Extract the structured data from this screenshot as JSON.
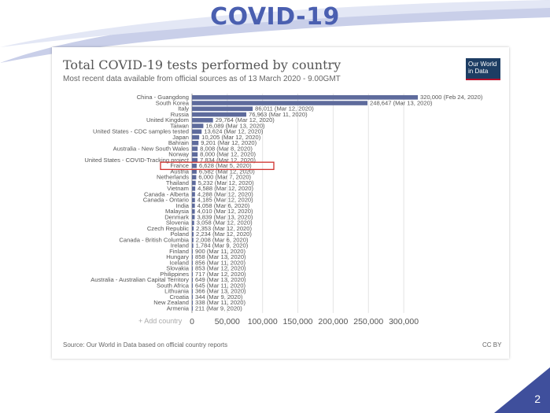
{
  "slide": {
    "title": "COVID-19",
    "page_number": "2",
    "colors": {
      "title": "#4a5fb0",
      "corner": "#3f4f9c",
      "bar": "#5e6b9c",
      "highlight": "#d0312d"
    }
  },
  "header": {
    "title": "Total COVID-19 tests performed by country",
    "subtitle": "Most recent data available from official sources as of 13 March 2020 - 9.00GMT",
    "logo_line1": "Our World",
    "logo_line2": "in Data"
  },
  "footer": {
    "source": "Source: Our World in Data based on official country reports",
    "license": "CC BY",
    "add_country": "+ Add country"
  },
  "chart_data": {
    "type": "bar",
    "orientation": "horizontal",
    "title": "Total COVID-19 tests performed by country",
    "highlighted_category": "France",
    "xlim": [
      0,
      330000
    ],
    "xticks": [
      0,
      50000,
      100000,
      150000,
      200000,
      250000,
      300000
    ],
    "xtick_labels": [
      "0",
      "50,000",
      "100,000",
      "150,000",
      "200,000",
      "250,000",
      "300,000"
    ],
    "categories": [
      "China - Guangdong",
      "South Korea",
      "Italy",
      "Russia",
      "United Kingdom",
      "Taiwan",
      "United States - CDC samples tested",
      "Japan",
      "Bahrain",
      "Australia - New South Wales",
      "Norway",
      "United States - COVID-Tracking project",
      "France",
      "Austria",
      "Netherlands",
      "Thailand",
      "Vietnam",
      "Canada - Alberta",
      "Canada - Ontario",
      "India",
      "Malaysia",
      "Denmark",
      "Slovenia",
      "Czech Republic",
      "Poland",
      "Canada - British Columbia",
      "Ireland",
      "Finland",
      "Hungary",
      "Iceland",
      "Slovakia",
      "Philippines",
      "Australia - Australian Capital Territory",
      "South Africa",
      "Lithuania",
      "Croatia",
      "New Zealand",
      "Armenia"
    ],
    "values": [
      320000,
      248647,
      86011,
      76963,
      29764,
      16089,
      13624,
      10205,
      9201,
      8008,
      8000,
      7834,
      6628,
      6582,
      6000,
      5232,
      4588,
      4288,
      4185,
      4058,
      4010,
      3839,
      3058,
      2353,
      2234,
      2008,
      1784,
      900,
      858,
      856,
      853,
      717,
      649,
      645,
      366,
      344,
      338,
      211
    ],
    "value_labels": [
      "320,000 (Feb 24, 2020)",
      "248,647 (Mar 13, 2020)",
      "86,011 (Mar 12, 2020)",
      "76,963 (Mar 11, 2020)",
      "29,764 (Mar 12, 2020)",
      "16,089 (Mar 13, 2020)",
      "13,624 (Mar 12, 2020)",
      "10,205 (Mar 12, 2020)",
      "9,201 (Mar 12, 2020)",
      "8,008 (Mar 8, 2020)",
      "8,000 (Mar 12, 2020)",
      "7,834 (Mar 12, 2020)",
      "6,628 (Mar 5, 2020)",
      "6,582 (Mar 12, 2020)",
      "6,000 (Mar 7, 2020)",
      "5,232 (Mar 12, 2020)",
      "4,588 (Mar 12, 2020)",
      "4,288 (Mar 12, 2020)",
      "4,185 (Mar 12, 2020)",
      "4,058 (Mar 6, 2020)",
      "4,010 (Mar 12, 2020)",
      "3,839 (Mar 13, 2020)",
      "3,058 (Mar 12, 2020)",
      "2,353 (Mar 12, 2020)",
      "2,234 (Mar 12, 2020)",
      "2,008 (Mar 6, 2020)",
      "1,784 (Mar 9, 2020)",
      "900 (Mar 11, 2020)",
      "858 (Mar 13, 2020)",
      "856 (Mar 11, 2020)",
      "853 (Mar 12, 2020)",
      "717 (Mar 12, 2020)",
      "649 (Mar 13, 2020)",
      "645 (Mar 11, 2020)",
      "366 (Mar 13, 2020)",
      "344 (Mar 9, 2020)",
      "338 (Mar 11, 2020)",
      "211 (Mar 9, 2020)"
    ]
  }
}
